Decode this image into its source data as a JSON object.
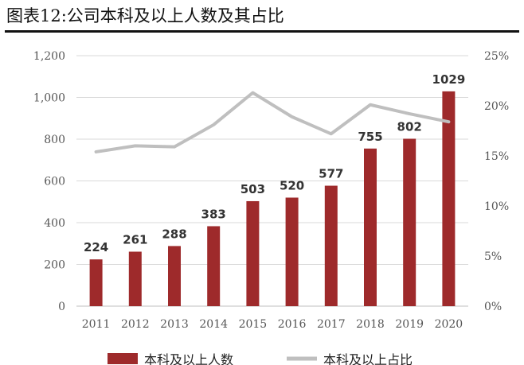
{
  "title": "图表12:公司本科及以上人数及其占比",
  "colors": {
    "bar": "#9E2A2B",
    "line": "#BFBFBF",
    "grid": "#D9D9D9"
  },
  "chart_data": {
    "type": "bar",
    "categories": [
      "2011",
      "2012",
      "2013",
      "2014",
      "2015",
      "2016",
      "2017",
      "2018",
      "2019",
      "2020"
    ],
    "series": [
      {
        "name": "本科及以上人数",
        "type": "bar",
        "axis": "left",
        "values": [
          224,
          261,
          288,
          383,
          503,
          520,
          577,
          755,
          802,
          1029
        ]
      },
      {
        "name": "本科及以上占比",
        "type": "line",
        "axis": "right",
        "values": [
          15.4,
          16.0,
          15.9,
          18.1,
          21.3,
          18.9,
          17.2,
          20.1,
          19.2,
          18.4
        ]
      }
    ],
    "data_labels": [
      "224",
      "261",
      "288",
      "383",
      "503",
      "520",
      "577",
      "755",
      "802",
      "1029"
    ],
    "ylim_left": [
      0,
      1200
    ],
    "ylim_right": [
      0,
      25
    ],
    "left_ticks": [
      "0",
      "200",
      "400",
      "600",
      "800",
      "1,000",
      "1,200"
    ],
    "right_ticks": [
      "0%",
      "5%",
      "10%",
      "15%",
      "20%",
      "25%"
    ],
    "grid": true,
    "legend_position": "bottom"
  }
}
